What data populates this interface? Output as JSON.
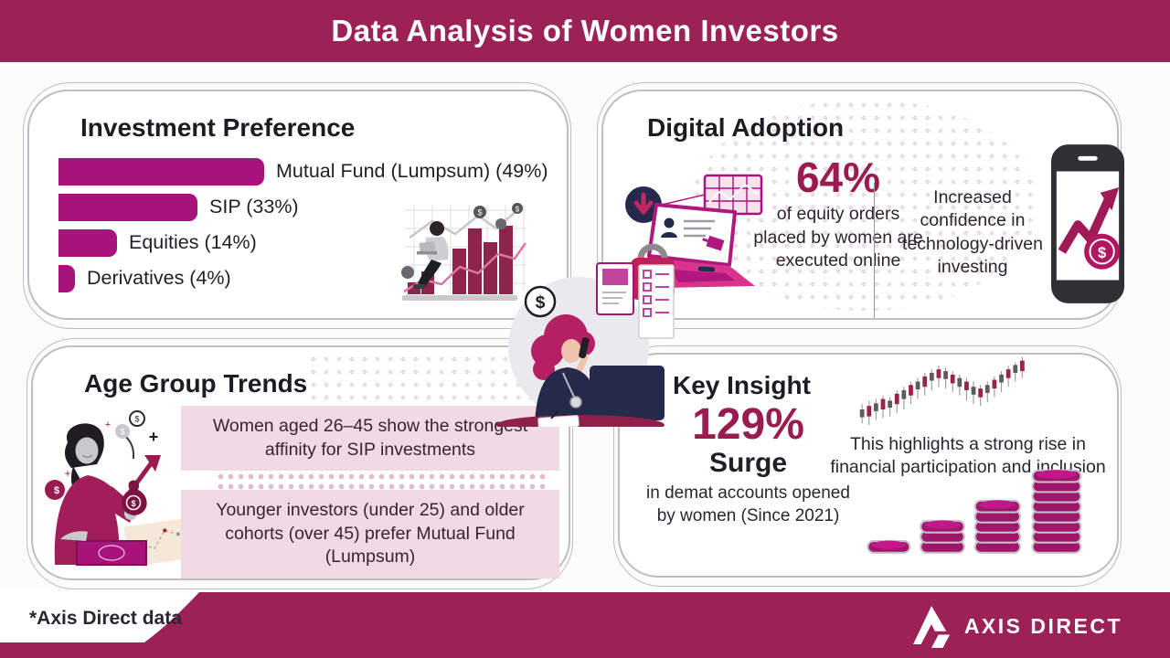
{
  "colors": {
    "brand": "#9C2157",
    "bar": "#A8137B",
    "stat": "#9A1B50",
    "pink_box": "#F0DAE4",
    "panel_border": "#BDBEC2",
    "navy": "#252A4A",
    "ink": "#28232C",
    "candle_red": "#9E2248",
    "candle_gray": "#5B5B60",
    "illustration_maroon": "#8E2449",
    "coin": "#A8137B",
    "coin_rim": "#C6BFCA"
  },
  "header": {
    "title": "Data Analysis of Women Investors"
  },
  "chart_data": {
    "type": "bar",
    "orientation": "horizontal",
    "title": "Investment Preference",
    "categories": [
      "Mutual Fund (Lumpsum)",
      "SIP",
      "Equities",
      "Derivatives"
    ],
    "values": [
      49,
      33,
      14,
      4
    ],
    "unit": "%",
    "labels": [
      "Mutual Fund (Lumpsum) (49%)",
      "SIP (33%)",
      "Equities (14%)",
      "Derivatives (4%)"
    ]
  },
  "panels": {
    "investment_preference": {
      "title": "Investment Preference"
    },
    "digital_adoption": {
      "title": "Digital Adoption",
      "stat": "64%",
      "caption": "of equity orders placed by women are executed online",
      "note": "Increased confidence in technology-driven investing"
    },
    "age_group_trends": {
      "title": "Age Group Trends",
      "insight_1": "Women aged 26–45 show the strongest affinity for SIP investments",
      "insight_2": "Younger investors (under 25) and older cohorts (over 45) prefer Mutual Fund (Lumpsum)"
    },
    "key_insight": {
      "title": "Key Insight",
      "stat": "129%",
      "stat_label": "Surge",
      "caption": "in demat accounts opened by women (Since 2021)",
      "description": "This highlights a strong rise in financial participation and inclusion"
    }
  },
  "footer": {
    "note": "*Axis Direct data",
    "brand": "AXIS DIRECT"
  },
  "icons": {
    "dollar": "$"
  }
}
